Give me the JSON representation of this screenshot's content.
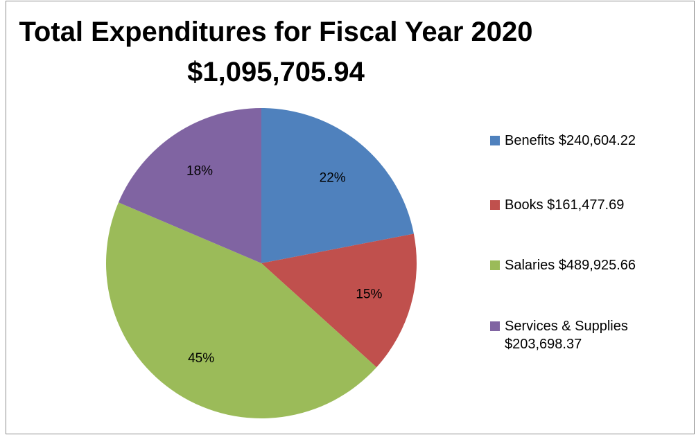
{
  "chart_data": {
    "type": "pie",
    "title": "Total Expenditures for Fiscal Year 2020",
    "subtitle": "$1,095,705.94",
    "slices": [
      {
        "name": "Benefits $240,604.22",
        "value": 240604.22,
        "percent_label": "22%",
        "color": "#4F81BD"
      },
      {
        "name": "Books $161,477.69",
        "value": 161477.69,
        "percent_label": "15%",
        "color": "#C0504D"
      },
      {
        "name": "Salaries $489,925.66",
        "value": 489925.66,
        "percent_label": "45%",
        "color": "#9BBB59"
      },
      {
        "name": "Services & Supplies $203,698.37",
        "value": 203698.37,
        "percent_label": "18%",
        "color": "#8064A2"
      }
    ],
    "legend_position": "right"
  }
}
